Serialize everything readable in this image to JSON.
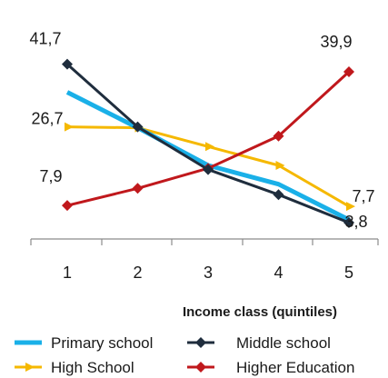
{
  "chart_data": {
    "type": "line",
    "title": "",
    "xlabel": "Income class (quintiles)",
    "ylabel": "",
    "x": [
      1,
      2,
      3,
      4,
      5
    ],
    "x_tick_labels": [
      "1",
      "2",
      "3",
      "4",
      "5"
    ],
    "ylim": [
      0,
      45
    ],
    "grid": false,
    "legend_position": "bottom",
    "series": [
      {
        "name": "Primary school",
        "color": "#1ab0e8",
        "marker": "none",
        "values": [
          35.0,
          26.5,
          17.5,
          13.0,
          4.5
        ]
      },
      {
        "name": "Middle school",
        "color": "#1f2d3d",
        "marker": "diamond",
        "values": [
          41.7,
          26.7,
          16.5,
          10.5,
          3.8
        ]
      },
      {
        "name": "High School",
        "color": "#f5b800",
        "marker": "arrow",
        "values": [
          26.7,
          26.5,
          22.0,
          17.5,
          7.7
        ]
      },
      {
        "name": "Higher Education",
        "color": "#c0181c",
        "marker": "diamond",
        "values": [
          7.9,
          12.0,
          16.8,
          24.5,
          39.9
        ]
      }
    ],
    "data_labels": [
      {
        "text": "41,7",
        "series": "Middle school",
        "index": 0
      },
      {
        "text": "26,7",
        "series": "High School",
        "index": 0
      },
      {
        "text": "7,9",
        "series": "Higher Education",
        "index": 0
      },
      {
        "text": "39,9",
        "series": "Higher Education",
        "index": 4
      },
      {
        "text": "7,7",
        "series": "High School",
        "index": 4
      },
      {
        "text": "3,8",
        "series": "Middle school",
        "index": 4
      }
    ]
  }
}
